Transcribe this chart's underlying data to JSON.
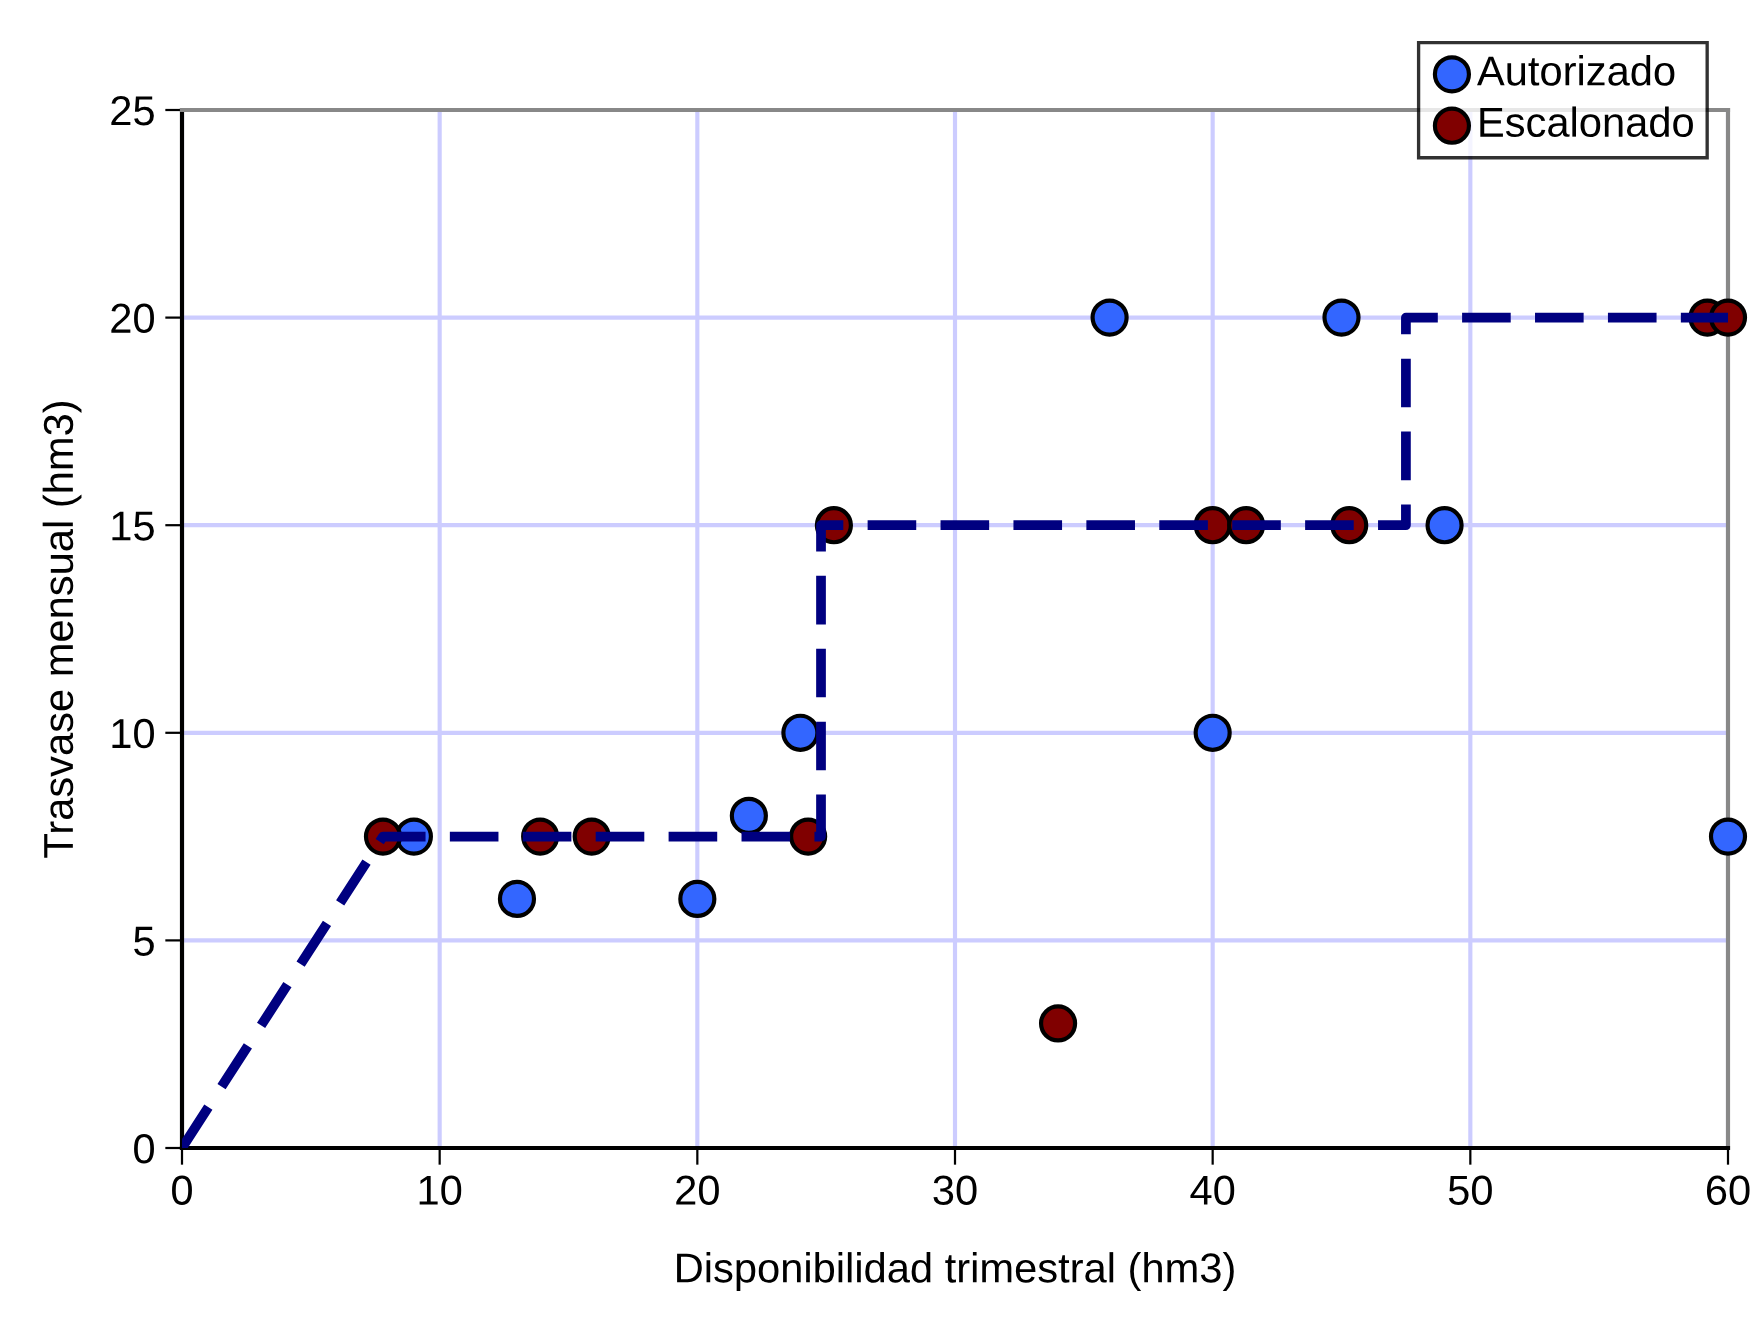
{
  "chart_data": {
    "type": "scatter",
    "xlabel": "Disponibilidad trimestral (hm3)",
    "ylabel": "Trasvase mensual (hm3)",
    "xlim": [
      0,
      60
    ],
    "xticks": [
      0,
      10,
      20,
      30,
      40,
      50,
      60
    ],
    "ylim": [
      0,
      25
    ],
    "yticks": [
      0,
      5,
      10,
      15,
      20,
      25
    ],
    "grid": true,
    "legend": "top right",
    "marker": "circle",
    "series": [
      {
        "name": "Autorizado",
        "color": "#3366ff",
        "x": [
          9,
          13,
          20,
          22,
          24,
          36,
          40,
          45,
          49,
          60
        ],
        "values": [
          7.5,
          6,
          6,
          8,
          10,
          20,
          10,
          20,
          15,
          7.5
        ]
      },
      {
        "name": "Escalonado",
        "color": "#800000",
        "x": [
          7.8,
          13.9,
          15.9,
          24.3,
          25.3,
          34,
          40,
          41.3,
          45.3,
          59.2,
          60
        ],
        "values": [
          7.5,
          7.5,
          7.5,
          7.5,
          15,
          3,
          15,
          15,
          15,
          20,
          20
        ]
      },
      {
        "type": "line",
        "color": "#000080",
        "line_style": "dashed",
        "marker": "none",
        "x": [
          0,
          7.8,
          24.8,
          24.8,
          47.5,
          47.5,
          60
        ],
        "values": [
          0,
          7.5,
          7.5,
          15,
          15,
          20,
          20
        ]
      }
    ]
  }
}
